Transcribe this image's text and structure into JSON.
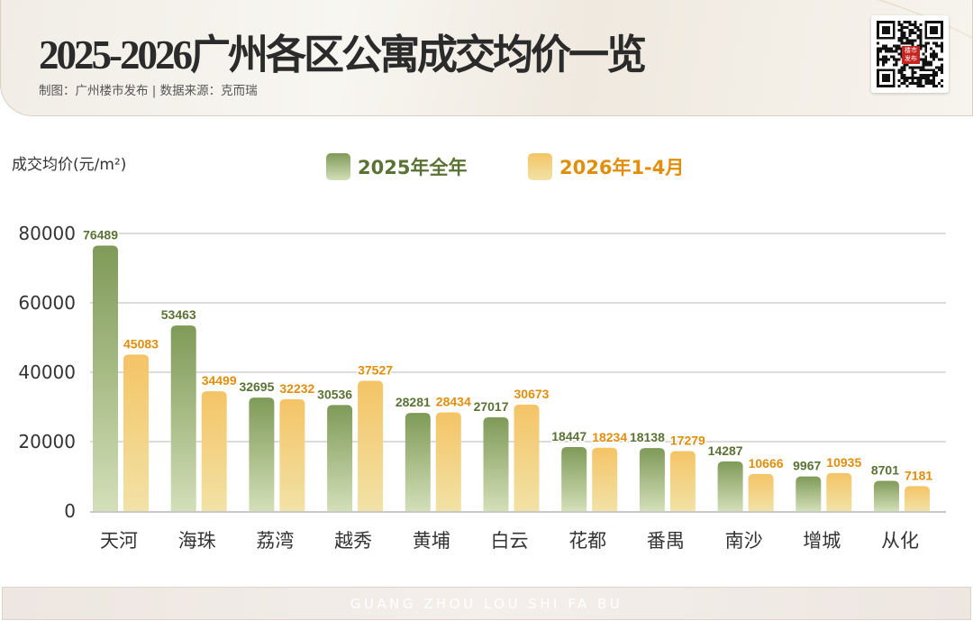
{
  "header": {
    "title": "2025-2026广州各区公寓成交均价一览",
    "subtitle": "制图：广州楼市发布  |  数据来源：克而瑞",
    "qr_logo_text": "楼市发布"
  },
  "footer": {
    "text": "GUANG ZHOU LOU SHI FA BU"
  },
  "colors": {
    "series1": "#7f9a58",
    "series1_light": "#d3dfb8",
    "series2": "#f4c466",
    "series2_light": "#f2e2a6",
    "label1": "#5a7234",
    "label2": "#e08e0b"
  },
  "chart_data": {
    "type": "bar",
    "ylabel": "成交均价(元/m²)",
    "ylim": [
      0,
      80000
    ],
    "yticks": [
      "0",
      "20000",
      "40000",
      "60000",
      "80000"
    ],
    "grid": true,
    "legend_position": "top",
    "categories": [
      "天河",
      "海珠",
      "荔湾",
      "越秀",
      "黄埔",
      "白云",
      "花都",
      "番禺",
      "南沙",
      "增城",
      "从化"
    ],
    "series": [
      {
        "name": "2025年全年",
        "values": [
          76489,
          53463,
          32695,
          30536,
          28281,
          27017,
          18447,
          18138,
          14287,
          9967,
          8701
        ]
      },
      {
        "name": "2026年1-4月",
        "values": [
          45083,
          34499,
          32232,
          37527,
          28434,
          30673,
          18234,
          17279,
          10666,
          10935,
          7181
        ]
      }
    ]
  }
}
